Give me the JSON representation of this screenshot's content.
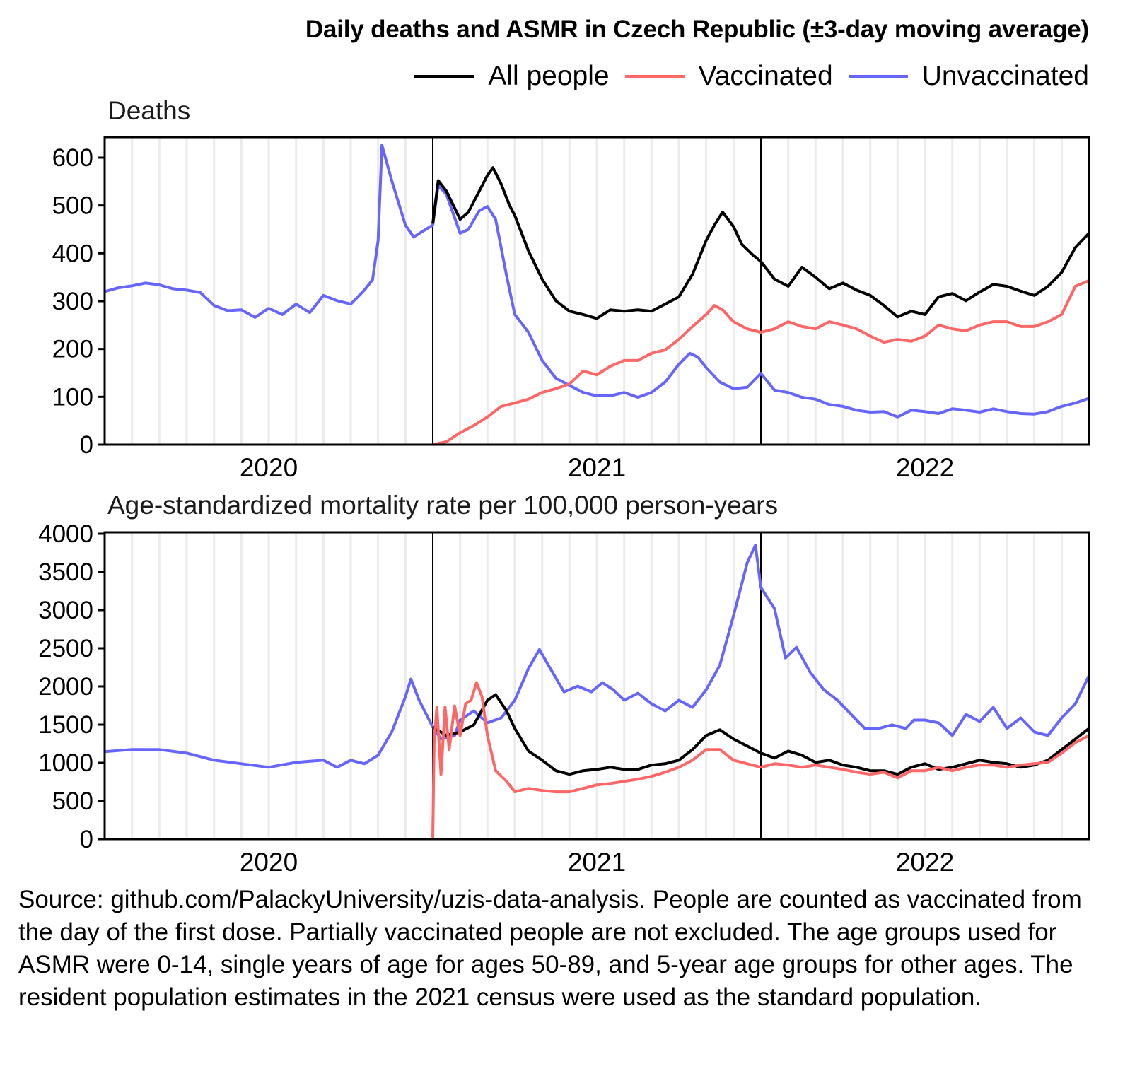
{
  "chart_data": [
    {
      "type": "line",
      "title": "Daily deaths and ASMR in Czech Republic (±3-day moving average)",
      "subtitle": "Deaths",
      "xlabel": "",
      "ylabel": "",
      "x_unit": "months since 2020-01-01",
      "xlim": [
        0,
        36
      ],
      "ylim": [
        0,
        630
      ],
      "yticks": [
        0,
        100,
        200,
        300,
        400,
        500,
        600
      ],
      "xtick_labels": [
        {
          "label": "2020",
          "x": 6
        },
        {
          "label": "2021",
          "x": 18
        },
        {
          "label": "2022",
          "x": 30
        }
      ],
      "year_separators": [
        12,
        24
      ],
      "monthly_gridlines": true,
      "series": [
        {
          "name": "Unvaccinated",
          "x": [
            0,
            0.5,
            1,
            1.5,
            2,
            2.5,
            3,
            3.5,
            4,
            4.5,
            5,
            5.5,
            6,
            6.5,
            7,
            7.5,
            8,
            8.5,
            9,
            9.5,
            9.8,
            10,
            10.14,
            10.5,
            11,
            11.3,
            11.6,
            12,
            12.2,
            12.5,
            13,
            13.3,
            13.7,
            14,
            14.3,
            14.7,
            15,
            15.5,
            16,
            16.5,
            17,
            17.5,
            18,
            18.5,
            19,
            19.5,
            20,
            20.5,
            21,
            21.4,
            21.7,
            22,
            22.5,
            23,
            23.5,
            24,
            24.5,
            25,
            25.5,
            26,
            26.5,
            27,
            27.5,
            28,
            28.5,
            29,
            29.5,
            30,
            30.5,
            31,
            31.5,
            32,
            32.5,
            33,
            33.5,
            34,
            34.5,
            35,
            35.5,
            36
          ],
          "values": [
            320,
            328,
            332,
            338,
            334,
            326,
            323,
            318,
            291,
            280,
            282,
            266,
            285,
            272,
            294,
            276,
            312,
            301,
            294,
            323,
            345,
            427,
            626,
            552,
            459,
            434,
            445,
            459,
            542,
            523,
            442,
            450,
            489,
            498,
            471,
            353,
            272,
            235,
            176,
            139,
            124,
            109,
            102,
            102,
            109,
            99,
            109,
            131,
            168,
            191,
            183,
            161,
            131,
            117,
            120,
            149,
            114,
            109,
            99,
            95,
            84,
            80,
            72,
            68,
            69,
            58,
            72,
            69,
            65,
            75,
            72,
            68,
            75,
            69,
            65,
            64,
            69,
            80,
            87,
            97
          ]
        },
        {
          "name": "All people",
          "x": [
            12,
            12.2,
            12.5,
            13,
            13.3,
            13.7,
            14,
            14.2,
            14.5,
            14.8,
            15,
            15.5,
            16,
            16.5,
            17,
            17.5,
            18,
            18.5,
            19,
            19.5,
            20,
            20.5,
            21,
            21.5,
            22,
            22.3,
            22.6,
            23,
            23.3,
            23.7,
            24,
            24.5,
            25,
            25.5,
            26,
            26.5,
            27,
            27.5,
            28,
            28.5,
            29,
            29.5,
            30,
            30.5,
            31,
            31.5,
            32,
            32.5,
            33,
            33.5,
            34,
            34.5,
            35,
            35.5,
            36
          ],
          "values": [
            462,
            552,
            530,
            471,
            486,
            530,
            563,
            579,
            545,
            501,
            479,
            405,
            346,
            301,
            279,
            272,
            264,
            282,
            279,
            282,
            279,
            294,
            309,
            356,
            427,
            459,
            486,
            456,
            419,
            397,
            383,
            346,
            331,
            371,
            350,
            326,
            338,
            323,
            312,
            291,
            267,
            279,
            272,
            309,
            316,
            301,
            319,
            335,
            331,
            321,
            312,
            331,
            360,
            412,
            442
          ]
        },
        {
          "name": "Vaccinated",
          "x": [
            12,
            12.5,
            13,
            13.5,
            14,
            14.5,
            15,
            15.5,
            16,
            16.5,
            17,
            17.5,
            18,
            18.5,
            19,
            19.5,
            20,
            20.5,
            21,
            21.5,
            22,
            22.3,
            22.6,
            23,
            23.5,
            24,
            24.5,
            25,
            25.5,
            26,
            26.5,
            27,
            27.5,
            28,
            28.5,
            29,
            29.5,
            30,
            30.5,
            31,
            31.5,
            32,
            32.5,
            33,
            33.5,
            34,
            34.5,
            35,
            35.5,
            36
          ],
          "values": [
            0,
            6,
            25,
            40,
            58,
            80,
            87,
            95,
            109,
            117,
            127,
            154,
            146,
            164,
            176,
            176,
            191,
            198,
            220,
            247,
            272,
            291,
            282,
            257,
            242,
            235,
            242,
            257,
            247,
            242,
            257,
            250,
            242,
            227,
            214,
            220,
            216,
            227,
            250,
            242,
            238,
            250,
            257,
            257,
            247,
            247,
            257,
            272,
            331,
            343
          ]
        }
      ]
    },
    {
      "type": "line",
      "subtitle": "Age-standardized mortality rate per 100,000 person-years",
      "xlabel": "",
      "ylabel": "",
      "x_unit": "months since 2020-01-01",
      "xlim": [
        0,
        36
      ],
      "ylim": [
        0,
        4000
      ],
      "yticks": [
        0,
        500,
        1000,
        1500,
        2000,
        2500,
        3000,
        3500,
        4000
      ],
      "xtick_labels": [
        {
          "label": "2020",
          "x": 6
        },
        {
          "label": "2021",
          "x": 18
        },
        {
          "label": "2022",
          "x": 30
        }
      ],
      "year_separators": [
        12,
        24
      ],
      "monthly_gridlines": true,
      "series": [
        {
          "name": "Unvaccinated",
          "x": [
            0,
            1,
            2,
            3,
            4,
            5,
            6,
            7,
            8,
            8.5,
            9,
            9.5,
            10,
            10.5,
            11,
            11.2,
            11.5,
            12,
            12.3,
            12.8,
            13,
            13.5,
            14,
            14.5,
            15,
            15.5,
            15.9,
            16.3,
            16.8,
            17.3,
            17.8,
            18.2,
            18.6,
            19,
            19.5,
            20,
            20.5,
            21,
            21.5,
            22,
            22.5,
            23,
            23.5,
            23.8,
            24,
            24.5,
            24.9,
            25.3,
            25.8,
            26.3,
            26.8,
            27.3,
            27.8,
            28.3,
            28.8,
            29.3,
            29.6,
            30,
            30.5,
            31,
            31.5,
            32,
            32.5,
            33,
            33.5,
            34,
            34.5,
            35,
            35.5,
            36
          ],
          "values": [
            1145,
            1173,
            1173,
            1127,
            1034,
            988,
            942,
            1006,
            1034,
            942,
            1034,
            988,
            1099,
            1404,
            1865,
            2096,
            1819,
            1468,
            1311,
            1357,
            1560,
            1680,
            1524,
            1588,
            1819,
            2234,
            2484,
            2234,
            1930,
            2004,
            1930,
            2050,
            1957,
            1819,
            1911,
            1773,
            1680,
            1819,
            1726,
            1957,
            2280,
            2927,
            3619,
            3850,
            3296,
            3019,
            2373,
            2512,
            2188,
            1957,
            1819,
            1634,
            1450,
            1450,
            1496,
            1450,
            1560,
            1560,
            1524,
            1357,
            1634,
            1542,
            1726,
            1450,
            1588,
            1404,
            1357,
            1588,
            1773,
            2142
          ]
        },
        {
          "name": "All people",
          "x": [
            12,
            12.5,
            13,
            13.5,
            14,
            14.3,
            14.7,
            15,
            15.5,
            16,
            16.5,
            17,
            17.5,
            18,
            18.5,
            19,
            19.5,
            20,
            20.5,
            21,
            21.5,
            22,
            22.5,
            23,
            23.5,
            24,
            24.5,
            25,
            25.5,
            26,
            26.5,
            27,
            27.5,
            28,
            28.5,
            29,
            29.5,
            30,
            30.5,
            31,
            31.5,
            32,
            32.5,
            33,
            33.5,
            34,
            34.5,
            35,
            35.5,
            36
          ],
          "values": [
            1468,
            1357,
            1404,
            1496,
            1819,
            1893,
            1680,
            1450,
            1154,
            1034,
            896,
            850,
            896,
            914,
            942,
            914,
            914,
            970,
            988,
            1034,
            1173,
            1357,
            1432,
            1311,
            1219,
            1127,
            1062,
            1154,
            1099,
            1006,
            1034,
            970,
            942,
            896,
            896,
            850,
            942,
            988,
            914,
            942,
            988,
            1034,
            1006,
            988,
            942,
            970,
            1034,
            1173,
            1311,
            1450
          ]
        },
        {
          "name": "Vaccinated",
          "x": [
            12,
            12.05,
            12.15,
            12.3,
            12.45,
            12.6,
            12.8,
            13,
            13.2,
            13.4,
            13.6,
            13.8,
            14,
            14.3,
            14.7,
            15,
            15.5,
            16,
            16.5,
            17,
            17.5,
            18,
            18.5,
            19,
            19.5,
            20,
            20.5,
            21,
            21.5,
            22,
            22.5,
            23,
            23.5,
            24,
            24.5,
            25,
            25.5,
            26,
            26.5,
            27,
            27.5,
            28,
            28.5,
            29,
            29.5,
            30,
            30.5,
            31,
            31.5,
            32,
            32.5,
            33,
            33.5,
            34,
            34.5,
            35,
            35.5,
            36
          ],
          "values": [
            0,
            1265,
            1727,
            850,
            1727,
            1173,
            1745,
            1357,
            1773,
            1819,
            2050,
            1865,
            1357,
            896,
            757,
            619,
            665,
            637,
            619,
            619,
            665,
            711,
            729,
            757,
            785,
            822,
            877,
            942,
            1034,
            1173,
            1173,
            1034,
            988,
            942,
            988,
            970,
            942,
            970,
            942,
            914,
            877,
            850,
            877,
            803,
            896,
            896,
            942,
            896,
            942,
            970,
            970,
            942,
            970,
            988,
            1006,
            1127,
            1265,
            1357
          ]
        }
      ]
    }
  ],
  "title": "Daily deaths and ASMR in Czech Republic (±3-day moving average)",
  "legend": [
    {
      "label": "All people",
      "color": "#000000"
    },
    {
      "label": "Vaccinated",
      "color": "#ff6666"
    },
    {
      "label": "Unvaccinated",
      "color": "#6666ff"
    }
  ],
  "colors": {
    "All people": "#000000",
    "Vaccinated": "#ff6666",
    "Unvaccinated": "#6666ff",
    "gridline": "#ebebeb"
  },
  "panels": {
    "top_title": "Deaths",
    "bottom_title": "Age-standardized mortality rate per 100,000 person-years"
  },
  "footer": "Source: github.com/PalackyUniversity/uzis-data-analysis. People are counted as vaccinated from the day of the first dose. Partially vaccinated people are not excluded. The age groups used for ASMR were 0-14, single years of age for ages 50-89, and 5-year age groups for other ages. The resident population estimates in the 2021 census were used as the standard population."
}
